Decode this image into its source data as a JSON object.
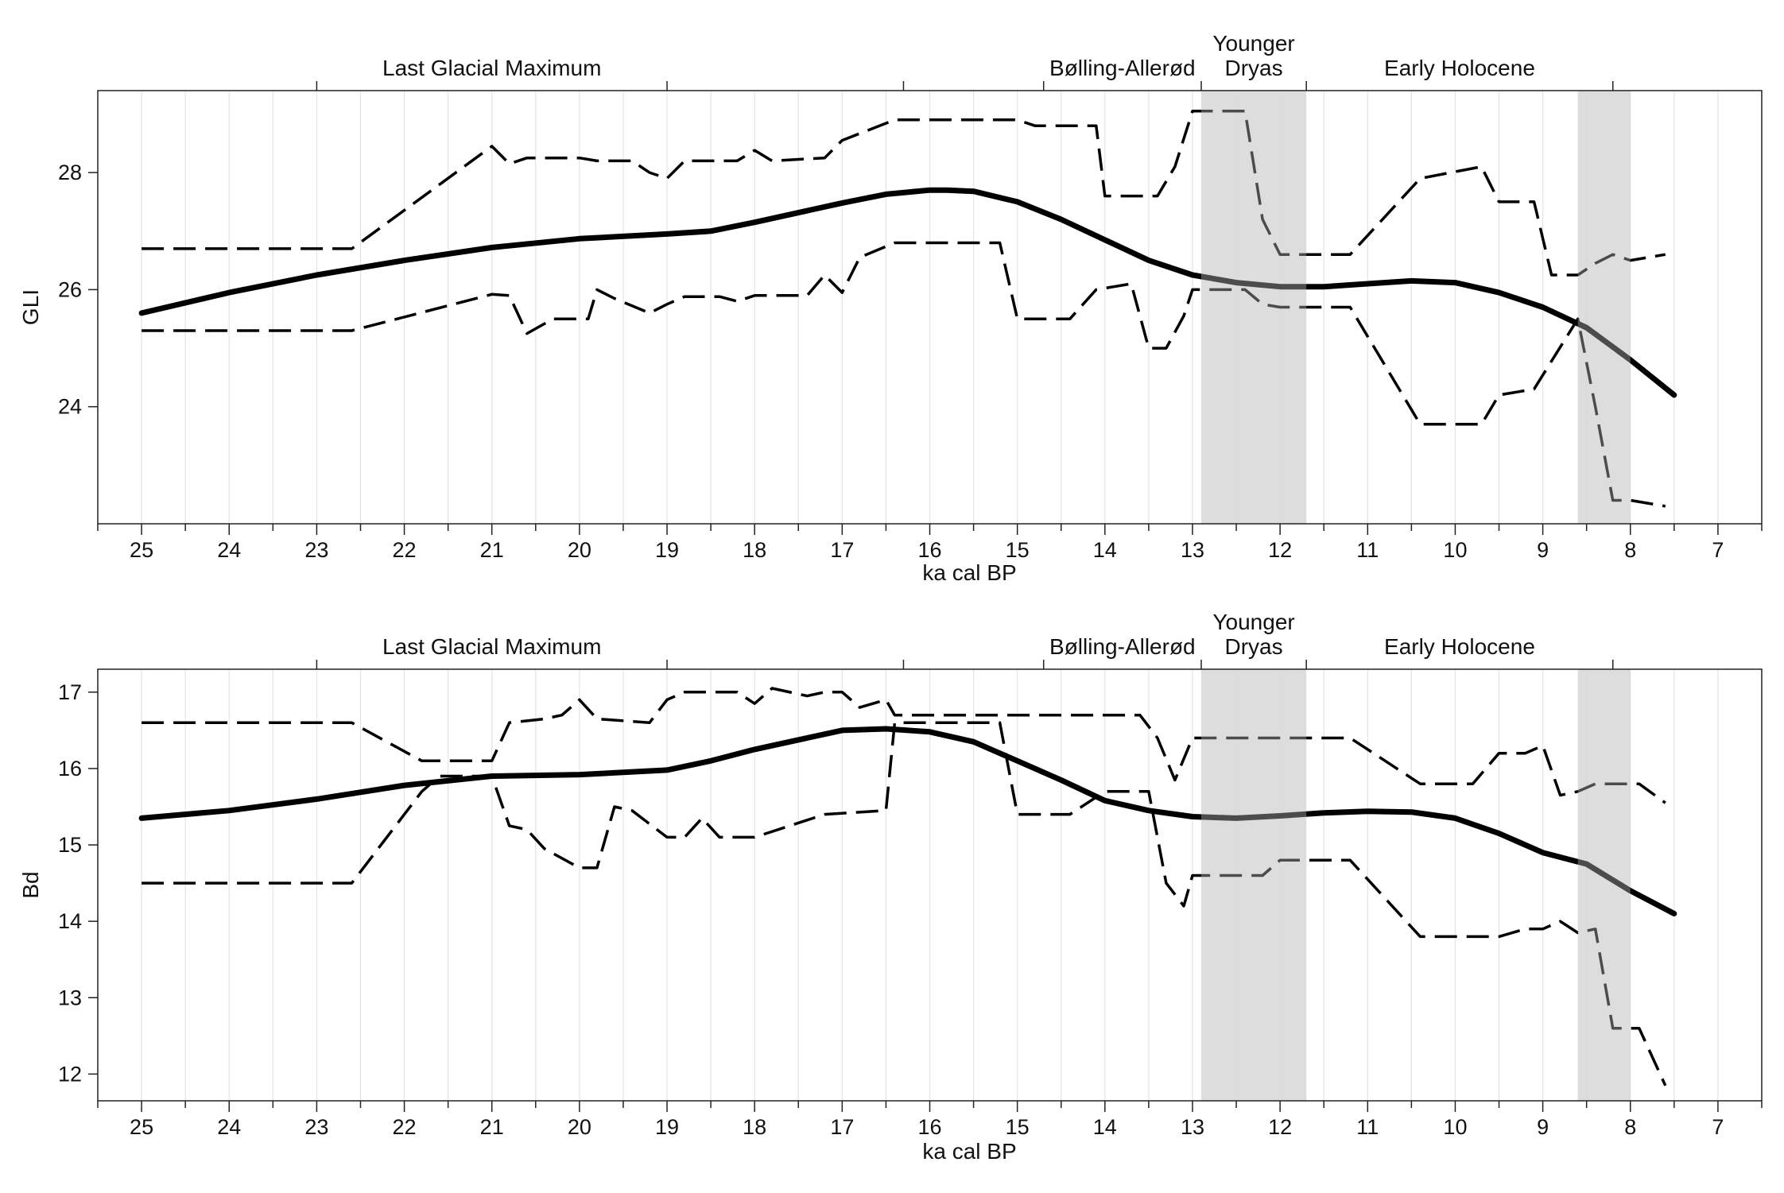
{
  "chart_data": [
    {
      "type": "line",
      "xlabel": "ka cal BP",
      "ylabel": "GLI",
      "xlim": [
        25.5,
        6.5
      ],
      "ylim": [
        22,
        29.4
      ],
      "xticks": [
        25,
        24,
        23,
        22,
        21,
        20,
        19,
        18,
        17,
        16,
        15,
        14,
        13,
        12,
        11,
        10,
        9,
        8,
        7
      ],
      "yticks": [
        24,
        26,
        28
      ],
      "grid": true,
      "periods": [
        {
          "label": "Last Glacial Maximum",
          "start": 23,
          "end": 19
        },
        {
          "label": "Bølling-Allerød",
          "start": 14.7,
          "end": 12.9
        },
        {
          "label": "Younger\nDryas",
          "start": 12.9,
          "end": 11.7
        },
        {
          "label": "Early Holocene",
          "start": 11.7,
          "end": 8.2
        }
      ],
      "shaded_intervals": [
        [
          12.9,
          11.7
        ],
        [
          8.6,
          8.0
        ]
      ],
      "series": [
        {
          "style": "solid",
          "x": [
            25,
            24,
            23,
            22,
            21,
            20,
            19,
            18.5,
            18,
            17,
            16.5,
            16,
            15.8,
            15.5,
            15,
            14.5,
            14,
            13.5,
            13,
            12.5,
            12,
            11.5,
            11,
            10.5,
            10,
            9.5,
            9,
            8.5,
            8,
            7.5
          ],
          "y": [
            25.6,
            25.95,
            26.25,
            26.5,
            26.72,
            26.87,
            26.95,
            27.0,
            27.15,
            27.48,
            27.63,
            27.7,
            27.7,
            27.68,
            27.5,
            27.2,
            26.85,
            26.5,
            26.25,
            26.12,
            26.05,
            26.05,
            26.1,
            26.15,
            26.12,
            25.95,
            25.7,
            25.35,
            24.8,
            24.2
          ]
        },
        {
          "style": "dashed",
          "x": [
            25,
            22.6,
            21,
            20.8,
            20.6,
            20,
            19.8,
            19.4,
            19.2,
            19,
            18.8,
            18.2,
            18,
            17.8,
            17.2,
            17,
            16.4,
            15,
            14.8,
            14.5,
            14.1,
            14,
            13.4,
            13.2,
            13,
            12.4,
            12.2,
            12,
            11.4,
            11.2,
            10.4,
            9.7,
            9.5,
            9.1,
            8.9,
            8.6,
            8.4,
            8.2,
            8,
            7.6
          ],
          "y": [
            26.7,
            26.7,
            28.45,
            28.15,
            28.25,
            28.25,
            28.2,
            28.2,
            28.0,
            27.9,
            28.2,
            28.2,
            28.38,
            28.2,
            28.25,
            28.55,
            28.9,
            28.9,
            28.8,
            28.8,
            28.8,
            27.6,
            27.6,
            28.1,
            29.05,
            29.05,
            27.2,
            26.6,
            26.6,
            26.6,
            27.9,
            28.1,
            27.5,
            27.5,
            26.25,
            26.25,
            26.45,
            26.6,
            26.5,
            26.6
          ]
        },
        {
          "style": "dashed",
          "x": [
            25,
            22.6,
            21,
            20.8,
            20.6,
            20.3,
            19.9,
            19.8,
            19.6,
            19.2,
            19,
            18.8,
            18.4,
            18.2,
            18,
            17.4,
            17.2,
            17,
            16.8,
            16.4,
            15.2,
            15,
            14.4,
            14.1,
            13.7,
            13.5,
            13.3,
            13.1,
            13,
            12.4,
            12.2,
            12,
            11.4,
            11.2,
            10.4,
            9.7,
            9.5,
            9.1,
            8.6,
            8.4,
            8.2,
            8,
            7.6
          ],
          "y": [
            25.3,
            25.3,
            25.92,
            25.9,
            25.25,
            25.5,
            25.5,
            26.0,
            25.85,
            25.6,
            25.75,
            25.88,
            25.88,
            25.8,
            25.9,
            25.9,
            26.25,
            25.95,
            26.55,
            26.8,
            26.8,
            25.5,
            25.5,
            26.0,
            26.1,
            25.0,
            25.0,
            25.55,
            26.0,
            26.0,
            25.75,
            25.7,
            25.7,
            25.7,
            23.7,
            23.7,
            24.2,
            24.3,
            25.5,
            24.0,
            22.4,
            22.4,
            22.3
          ]
        }
      ]
    },
    {
      "type": "line",
      "xlabel": "ka cal BP",
      "ylabel": "Bd",
      "xlim": [
        25.5,
        6.5
      ],
      "ylim": [
        11.65,
        17.3
      ],
      "xticks": [
        25,
        24,
        23,
        22,
        21,
        20,
        19,
        18,
        17,
        16,
        15,
        14,
        13,
        12,
        11,
        10,
        9,
        8,
        7
      ],
      "yticks": [
        12,
        13,
        14,
        15,
        16,
        17
      ],
      "grid": true,
      "periods": [
        {
          "label": "Last Glacial Maximum",
          "start": 23,
          "end": 19
        },
        {
          "label": "Bølling-Allerød",
          "start": 14.7,
          "end": 12.9
        },
        {
          "label": "Younger\nDryas",
          "start": 12.9,
          "end": 11.7
        },
        {
          "label": "Early Holocene",
          "start": 11.7,
          "end": 8.2
        }
      ],
      "shaded_intervals": [
        [
          12.9,
          11.7
        ],
        [
          8.6,
          8.0
        ]
      ],
      "series": [
        {
          "style": "solid",
          "x": [
            25,
            24,
            23,
            22,
            21,
            20,
            19,
            18.5,
            18,
            17,
            16.5,
            16,
            15.5,
            15,
            14.5,
            14,
            13.5,
            13,
            12.5,
            12,
            11.5,
            11,
            10.5,
            10,
            9.5,
            9,
            8.5,
            8,
            7.5
          ],
          "y": [
            15.35,
            15.45,
            15.6,
            15.78,
            15.9,
            15.92,
            15.98,
            16.1,
            16.25,
            16.5,
            16.52,
            16.48,
            16.35,
            16.1,
            15.85,
            15.58,
            15.45,
            15.37,
            15.35,
            15.38,
            15.42,
            15.44,
            15.43,
            15.35,
            15.15,
            14.9,
            14.75,
            14.4,
            14.1
          ]
        },
        {
          "style": "dashed",
          "x": [
            25,
            22.6,
            21.8,
            21.6,
            21,
            20.8,
            20.4,
            20.2,
            20,
            19.8,
            19.2,
            19,
            18.8,
            18.2,
            18,
            17.8,
            17.4,
            17.2,
            17,
            16.8,
            16.5,
            16.4,
            13.6,
            13.4,
            13.2,
            13,
            11.2,
            10.4,
            9.8,
            9.5,
            9.2,
            9,
            8.8,
            8.6,
            8.4,
            8.2,
            7.9,
            7.6
          ],
          "y": [
            16.6,
            16.6,
            16.1,
            16.1,
            16.1,
            16.6,
            16.65,
            16.7,
            16.9,
            16.65,
            16.6,
            16.9,
            17.0,
            17.0,
            16.85,
            17.05,
            16.95,
            17.0,
            17.0,
            16.8,
            16.9,
            16.7,
            16.7,
            16.4,
            15.85,
            16.4,
            16.4,
            15.8,
            15.8,
            16.2,
            16.2,
            16.3,
            15.65,
            15.7,
            15.8,
            15.8,
            15.8,
            15.55
          ]
        },
        {
          "style": "dashed",
          "x": [
            25,
            22.6,
            21.8,
            21.6,
            21,
            20.8,
            20.6,
            20.4,
            20,
            19.8,
            19.6,
            19.4,
            19,
            18.8,
            18.6,
            18.4,
            18,
            17.2,
            16.5,
            16.4,
            15.2,
            15,
            14.4,
            14,
            13.5,
            13.3,
            13.1,
            13,
            12.4,
            12.2,
            12,
            11.2,
            10.4,
            9.8,
            9.5,
            9.2,
            9,
            8.8,
            8.6,
            8.4,
            8.2,
            7.9,
            7.6
          ],
          "y": [
            14.5,
            14.5,
            15.7,
            15.9,
            15.9,
            15.25,
            15.2,
            14.95,
            14.7,
            14.7,
            15.5,
            15.45,
            15.1,
            15.1,
            15.35,
            15.1,
            15.1,
            15.4,
            15.45,
            16.6,
            16.6,
            15.4,
            15.4,
            15.7,
            15.7,
            14.5,
            14.2,
            14.6,
            14.6,
            14.6,
            14.8,
            14.8,
            13.8,
            13.8,
            13.8,
            13.9,
            13.9,
            14.0,
            13.85,
            13.9,
            12.6,
            12.6,
            11.85
          ]
        }
      ]
    }
  ]
}
